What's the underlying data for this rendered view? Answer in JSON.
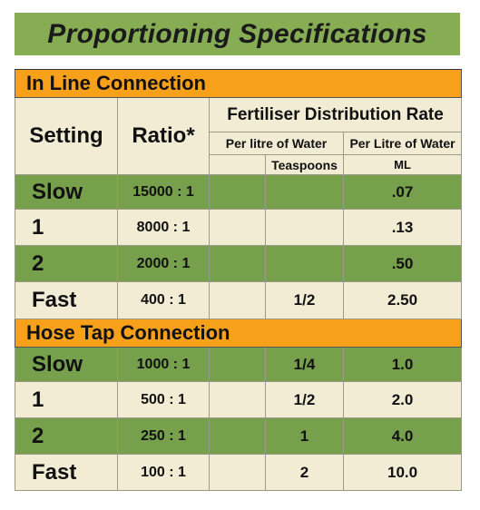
{
  "title": "Proportioning Specifications",
  "header": {
    "setting": "Setting",
    "ratio": "Ratio*",
    "distribution_rate": "Fertiliser Distribution Rate",
    "per_litre_water_1": "Per litre of Water",
    "per_litre_water_2": "Per Litre of Water",
    "teaspoons": "Teaspoons",
    "ml": "ML"
  },
  "sections": [
    {
      "name": "In Line Connection",
      "rows": [
        {
          "setting": "Slow",
          "ratio": "15000 : 1",
          "teaspoons": "",
          "ml": ".07"
        },
        {
          "setting": "1",
          "ratio": "8000 : 1",
          "teaspoons": "",
          "ml": ".13"
        },
        {
          "setting": "2",
          "ratio": "2000 : 1",
          "teaspoons": "",
          "ml": ".50"
        },
        {
          "setting": "Fast",
          "ratio": "400 : 1",
          "teaspoons": "1/2",
          "ml": "2.50"
        }
      ]
    },
    {
      "name": "Hose Tap Connection",
      "rows": [
        {
          "setting": "Slow",
          "ratio": "1000 : 1",
          "teaspoons": "1/4",
          "ml": "1.0"
        },
        {
          "setting": "1",
          "ratio": "500 : 1",
          "teaspoons": "1/2",
          "ml": "2.0"
        },
        {
          "setting": "2",
          "ratio": "250 : 1",
          "teaspoons": "1",
          "ml": "4.0"
        },
        {
          "setting": "Fast",
          "ratio": "100 : 1",
          "teaspoons": "2",
          "ml": "10.0"
        }
      ]
    }
  ]
}
